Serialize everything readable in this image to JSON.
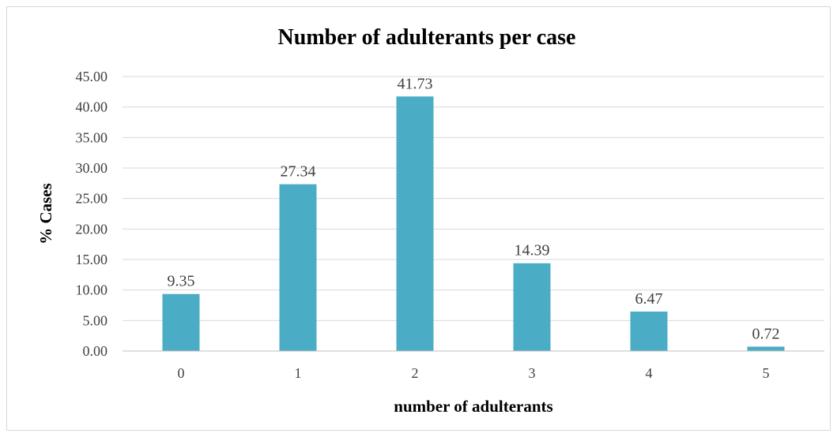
{
  "chart_data": {
    "type": "bar",
    "title": "Number of adulterants per case",
    "xlabel": "number of adulterants",
    "ylabel": "% Cases",
    "categories": [
      "0",
      "1",
      "2",
      "3",
      "4",
      "5"
    ],
    "values": [
      9.35,
      27.34,
      41.73,
      14.39,
      6.47,
      0.72
    ],
    "data_labels": [
      "9.35",
      "27.34",
      "41.73",
      "14.39",
      "6.47",
      "0.72"
    ],
    "yticks": [
      "0.00",
      "5.00",
      "10.00",
      "15.00",
      "20.00",
      "25.00",
      "30.00",
      "35.00",
      "40.00",
      "45.00"
    ],
    "ylim": [
      0,
      45
    ],
    "grid": "horizontal",
    "legend": "none",
    "bar_color": "#4bacc6"
  }
}
